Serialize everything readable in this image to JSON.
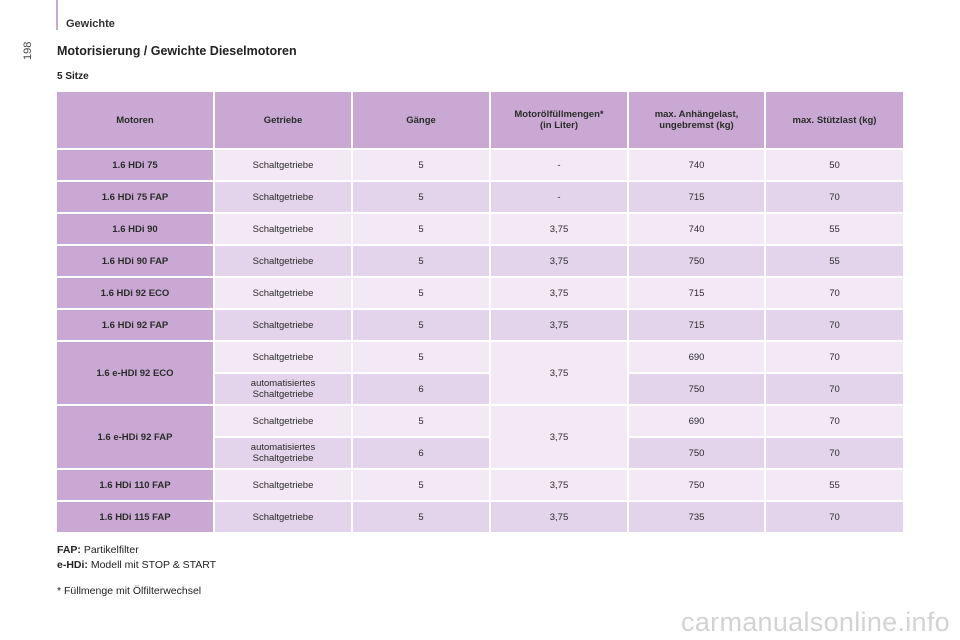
{
  "header": {
    "section_label": "Gewichte",
    "page_number": "198"
  },
  "title": "Motorisierung / Gewichte Dieselmotoren",
  "subtitle": "5 Sitze",
  "table": {
    "columns": [
      "Motoren",
      "Getriebe",
      "Gänge",
      "Motorölfüllmengen*\n(in Liter)",
      "max. Anhängelast,\nungebremst (kg)",
      "max. Stützlast (kg)"
    ],
    "groups": [
      {
        "motor": "1.6 HDi 75",
        "oil": "-",
        "rows": [
          {
            "gearbox": "Schaltgetriebe",
            "gears": "5",
            "trailer": "740",
            "nose": "50"
          }
        ]
      },
      {
        "motor": "1.6 HDi 75 FAP",
        "oil": "-",
        "rows": [
          {
            "gearbox": "Schaltgetriebe",
            "gears": "5",
            "trailer": "715",
            "nose": "70"
          }
        ]
      },
      {
        "motor": "1.6 HDi 90",
        "oil": "3,75",
        "rows": [
          {
            "gearbox": "Schaltgetriebe",
            "gears": "5",
            "trailer": "740",
            "nose": "55"
          }
        ]
      },
      {
        "motor": "1.6 HDi 90 FAP",
        "oil": "3,75",
        "rows": [
          {
            "gearbox": "Schaltgetriebe",
            "gears": "5",
            "trailer": "750",
            "nose": "55"
          }
        ]
      },
      {
        "motor": "1.6 HDi 92 ECO",
        "oil": "3,75",
        "rows": [
          {
            "gearbox": "Schaltgetriebe",
            "gears": "5",
            "trailer": "715",
            "nose": "70"
          }
        ]
      },
      {
        "motor": "1.6 HDi 92 FAP",
        "oil": "3,75",
        "rows": [
          {
            "gearbox": "Schaltgetriebe",
            "gears": "5",
            "trailer": "715",
            "nose": "70"
          }
        ]
      },
      {
        "motor": "1.6 e-HDI 92 ECO",
        "oil": "3,75",
        "rows": [
          {
            "gearbox": "Schaltgetriebe",
            "gears": "5",
            "trailer": "690",
            "nose": "70"
          },
          {
            "gearbox": "automatisiertes\nSchaltgetriebe",
            "gears": "6",
            "trailer": "750",
            "nose": "70"
          }
        ]
      },
      {
        "motor": "1.6 e-HDi 92 FAP",
        "oil": "3,75",
        "rows": [
          {
            "gearbox": "Schaltgetriebe",
            "gears": "5",
            "trailer": "690",
            "nose": "70"
          },
          {
            "gearbox": "automatisiertes\nSchaltgetriebe",
            "gears": "6",
            "trailer": "750",
            "nose": "70"
          }
        ]
      },
      {
        "motor": "1.6 HDi 110 FAP",
        "oil": "3,75",
        "rows": [
          {
            "gearbox": "Schaltgetriebe",
            "gears": "5",
            "trailer": "750",
            "nose": "55"
          }
        ]
      },
      {
        "motor": "1.6 HDi 115 FAP",
        "oil": "3,75",
        "rows": [
          {
            "gearbox": "Schaltgetriebe",
            "gears": "5",
            "trailer": "735",
            "nose": "70"
          }
        ]
      }
    ]
  },
  "notes": [
    {
      "term": "FAP:",
      "text": " Partikelfilter"
    },
    {
      "term": "e-HDi:",
      "text": " Modell mit STOP & START"
    }
  ],
  "footnote": "* Füllmenge mit Ölfilterwechsel",
  "watermark": "carmanualsonline.info",
  "colors": {
    "accent": "#c9a9d3",
    "row_light": "#f3e8f6",
    "row_dark": "#e4d4eb"
  }
}
